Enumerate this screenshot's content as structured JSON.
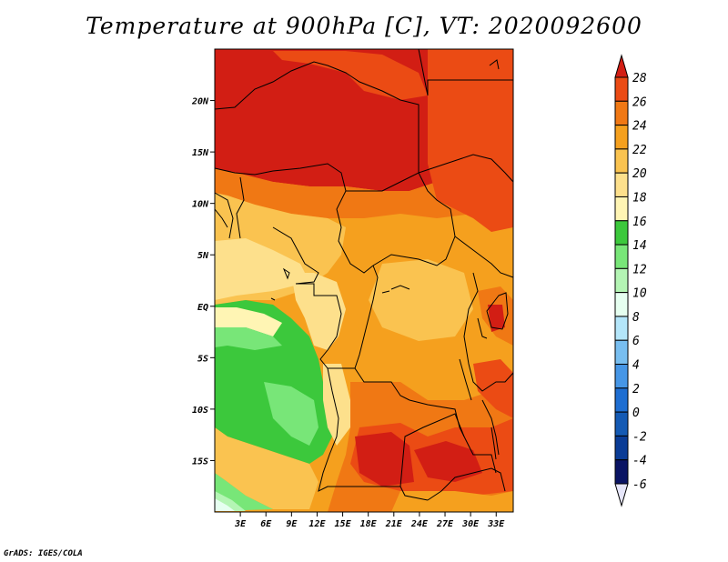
{
  "title": "Temperature at 900hPa [C], VT: 2020092600",
  "credit": "GrADS: IGES/COLA",
  "map": {
    "lon_range": [
      0,
      35
    ],
    "lat_range": [
      -20,
      25
    ],
    "lat_ticks": [
      "20N",
      "15N",
      "10N",
      "5N",
      "EQ",
      "5S",
      "10S",
      "15S"
    ],
    "lon_ticks": [
      "3E",
      "6E",
      "9E",
      "12E",
      "15E",
      "18E",
      "21E",
      "24E",
      "27E",
      "30E",
      "33E"
    ]
  },
  "colorbar": {
    "levels": [
      "28",
      "26",
      "24",
      "22",
      "20",
      "18",
      "16",
      "14",
      "12",
      "10",
      "8",
      "6",
      "4",
      "2",
      "0",
      "-2",
      "-4",
      "-6"
    ],
    "colors": [
      "#d21e14",
      "#eb4b14",
      "#f07814",
      "#f5a01e",
      "#fac350",
      "#fde08c",
      "#fff5b4",
      "#3cc83c",
      "#78e678",
      "#b4f5b4",
      "#e6fff0",
      "#b4e6fa",
      "#78bef0",
      "#4696e6",
      "#1e6ed2",
      "#145ab4",
      "#0a3c96",
      "#0a1464"
    ]
  }
}
